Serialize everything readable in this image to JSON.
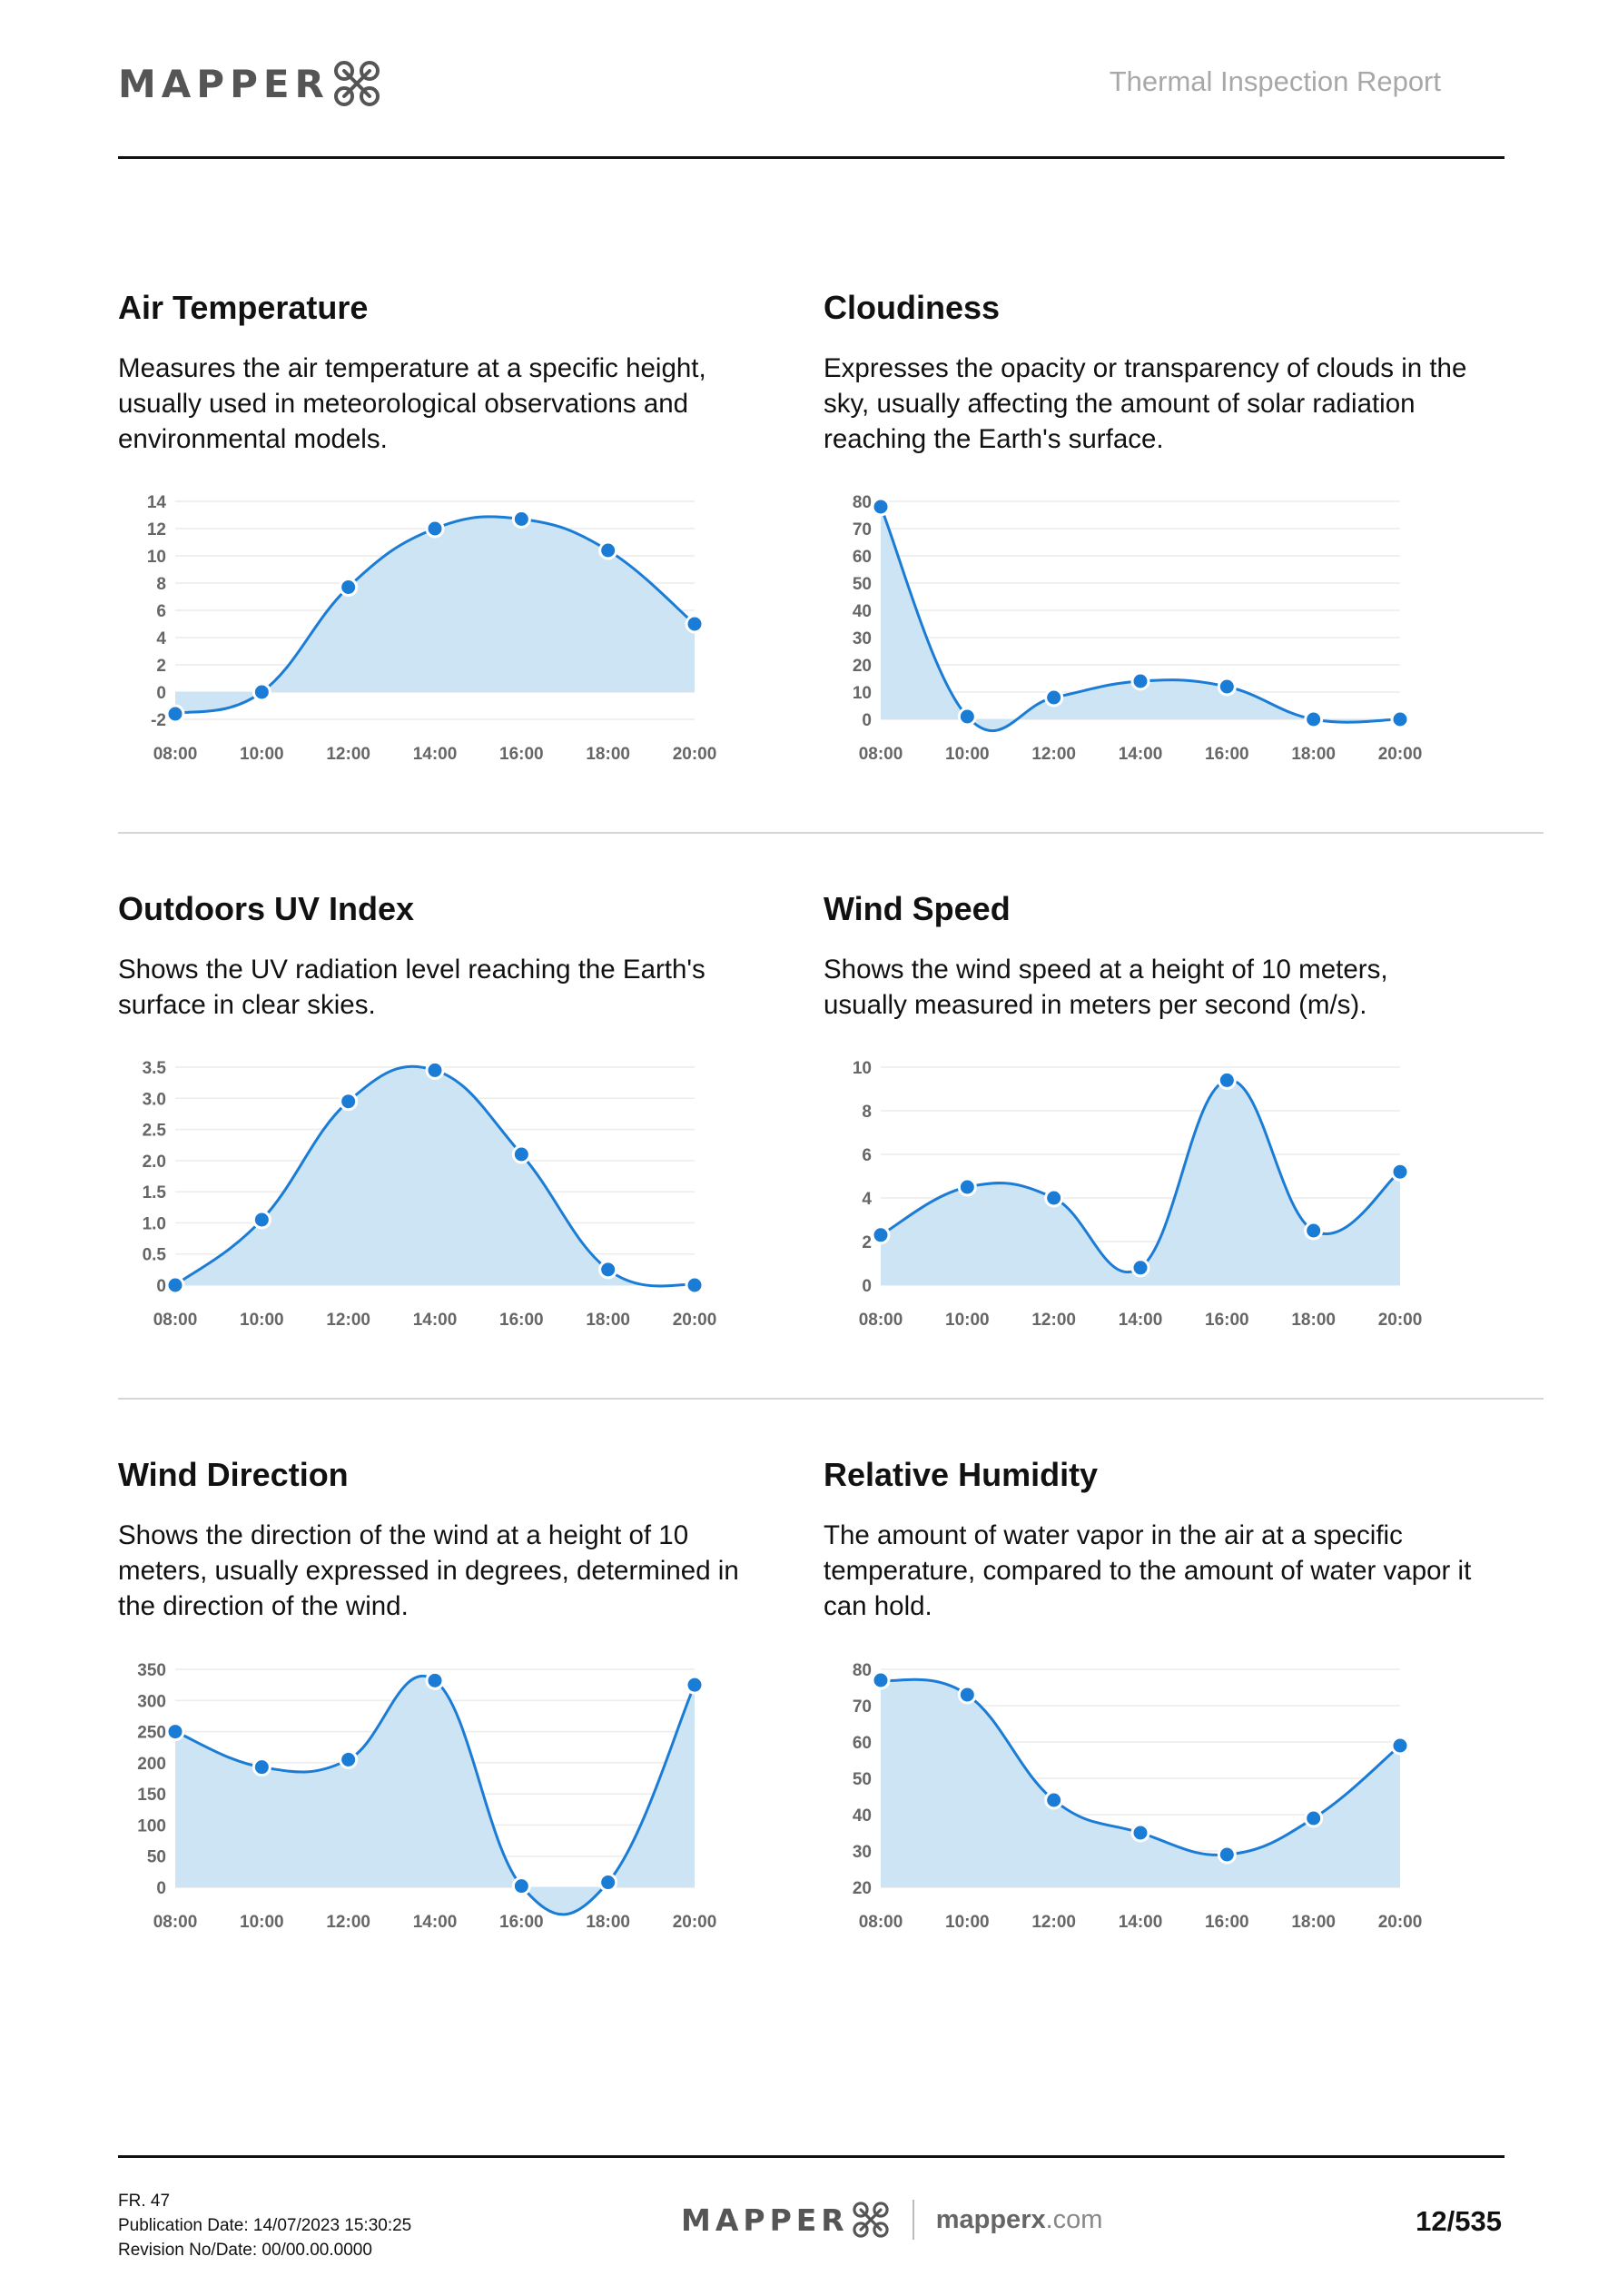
{
  "header": {
    "logo_text": "MAPPER",
    "logo_mark": "drone-logo-icon",
    "report_title": "Thermal Inspection Report"
  },
  "sections": [
    {
      "title": "Air Temperature",
      "description": "Measures the air temperature at a specific height, usually used in meteorological observations and environmental models."
    },
    {
      "title": "Cloudiness",
      "description": "Expresses the opacity or transparency of clouds in the sky, usually affecting the amount of solar radiation reaching the Earth's surface."
    },
    {
      "title": "Outdoors UV Index",
      "description": "Shows the UV radiation level reaching the Earth's surface in clear skies."
    },
    {
      "title": "Wind Speed",
      "description": "Shows the wind speed at a height of 10 meters, usually measured in meters per second (m/s)."
    },
    {
      "title": "Wind Direction",
      "description": "Shows the direction of the wind at a height of 10 meters, usually expressed in degrees, determined in the direction of the wind."
    },
    {
      "title": "Relative Humidity",
      "description": "The amount of water vapor in the air at a specific temperature, compared to the amount of water vapor it can hold."
    }
  ],
  "chart_data": [
    {
      "type": "area",
      "title": "Air Temperature",
      "x": [
        "08:00",
        "10:00",
        "12:00",
        "14:00",
        "16:00",
        "18:00",
        "20:00"
      ],
      "values": [
        -1.6,
        0,
        7.7,
        12,
        12.7,
        10.4,
        5
      ],
      "ylim": [
        -2,
        14
      ],
      "yticks": [
        -2,
        0,
        2,
        4,
        6,
        8,
        10,
        12,
        14
      ],
      "ytick_labels": [
        "-2",
        "0",
        "2",
        "4",
        "6",
        "8",
        "10",
        "12",
        "14"
      ],
      "grid": true
    },
    {
      "type": "area",
      "title": "Cloudiness",
      "x": [
        "08:00",
        "10:00",
        "12:00",
        "14:00",
        "16:00",
        "18:00",
        "20:00"
      ],
      "values": [
        78,
        1,
        8,
        14,
        12,
        0,
        0
      ],
      "ylim": [
        0,
        80
      ],
      "yticks": [
        0,
        10,
        20,
        30,
        40,
        50,
        60,
        70,
        80
      ],
      "ytick_labels": [
        "0",
        "10",
        "20",
        "30",
        "40",
        "50",
        "60",
        "70",
        "80"
      ],
      "grid": true
    },
    {
      "type": "area",
      "title": "Outdoors UV Index",
      "x": [
        "08:00",
        "10:00",
        "12:00",
        "14:00",
        "16:00",
        "18:00",
        "20:00"
      ],
      "values": [
        0,
        1.05,
        2.95,
        3.45,
        2.1,
        0.25,
        0
      ],
      "ylim": [
        0,
        3.5
      ],
      "yticks": [
        0,
        0.5,
        1,
        1.5,
        2,
        2.5,
        3,
        3.5
      ],
      "ytick_labels": [
        "0",
        "0.5",
        "1.0",
        "1.5",
        "2.0",
        "2.5",
        "3.0",
        "3.5"
      ],
      "grid": true
    },
    {
      "type": "area",
      "title": "Wind Speed",
      "x": [
        "08:00",
        "10:00",
        "12:00",
        "14:00",
        "16:00",
        "18:00",
        "20:00"
      ],
      "values": [
        2.3,
        4.5,
        4,
        0.8,
        9.4,
        2.5,
        5.2
      ],
      "ylim": [
        0,
        10
      ],
      "yticks": [
        0,
        2,
        4,
        6,
        8,
        10
      ],
      "ytick_labels": [
        "0",
        "2",
        "4",
        "6",
        "8",
        "10"
      ],
      "grid": true
    },
    {
      "type": "area",
      "title": "Wind Direction",
      "x": [
        "08:00",
        "10:00",
        "12:00",
        "14:00",
        "16:00",
        "18:00",
        "20:00"
      ],
      "values": [
        250,
        193,
        205,
        332,
        2,
        8,
        325
      ],
      "ylim": [
        0,
        350
      ],
      "yticks": [
        0,
        50,
        100,
        150,
        200,
        250,
        300,
        350
      ],
      "ytick_labels": [
        "0",
        "50",
        "100",
        "150",
        "200",
        "250",
        "300",
        "350"
      ],
      "grid": true
    },
    {
      "type": "area",
      "title": "Relative Humidity",
      "x": [
        "08:00",
        "10:00",
        "12:00",
        "14:00",
        "16:00",
        "18:00",
        "20:00"
      ],
      "values": [
        77,
        73,
        44,
        35,
        29,
        39,
        59
      ],
      "ylim": [
        20,
        80
      ],
      "yticks": [
        20,
        30,
        40,
        50,
        60,
        70,
        80
      ],
      "ytick_labels": [
        "20",
        "30",
        "40",
        "50",
        "60",
        "70",
        "80"
      ],
      "grid": true
    }
  ],
  "colors": {
    "line": "#1b7cd6",
    "fill": "#cde4f5",
    "grid": "#ececec"
  },
  "footer": {
    "form_code": "FR. 47",
    "publication_date": "Publication Date: 14/07/2023 15:30:25",
    "revision": "Revision No/Date: 00/00.00.0000",
    "logo_text": "MAPPER",
    "site_name": "mapperx",
    "site_tld": ".com",
    "page_number": "12/535"
  }
}
